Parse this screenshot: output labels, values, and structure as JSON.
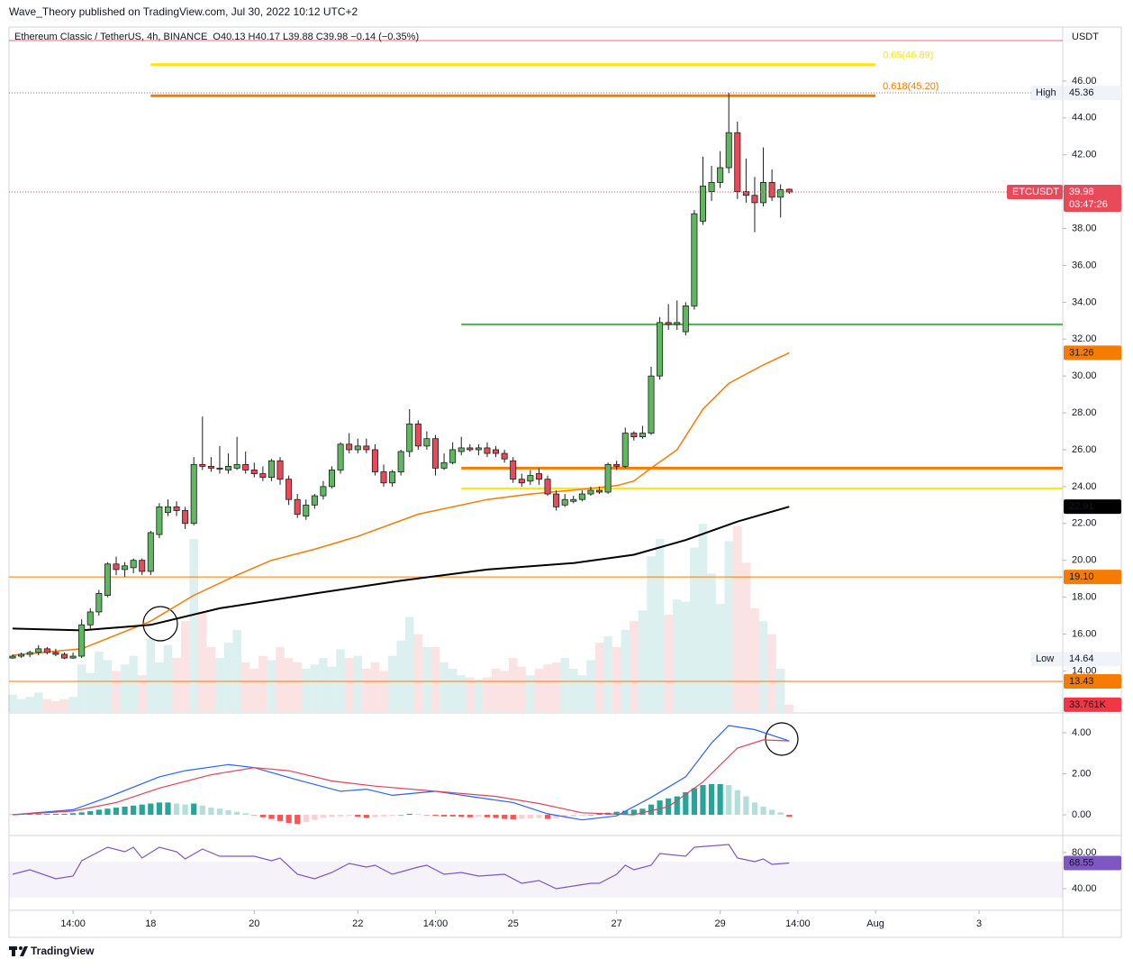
{
  "header": {
    "publisher": "Wave_Theory published on TradingView.com, Jul 30, 2022 10:12 UTC+2",
    "footer": "TradingView"
  },
  "chart_data": [
    {
      "type": "candlestick",
      "title": "Ethereum Classic / TetherUS, 4h, BINANCE",
      "ohlc_legend": "O40.13  H40.17  L39.88  C39.98  −0.14 (−0.35%)",
      "currency": "USDT",
      "ticker": "ETCUSDT",
      "countdown": "03:47:26",
      "up_color": "#5fb760",
      "down_color": "#e84a5a",
      "outline_color": "#1c1c1c",
      "open": [
        14.7,
        14.8,
        14.9,
        15.0,
        15.2,
        15.0,
        14.9,
        14.7,
        14.8,
        16.5,
        17.2,
        18.1,
        19.8,
        19.5,
        19.6,
        20.0,
        19.4,
        21.4,
        22.6,
        22.9,
        22.7,
        22.0,
        25.2,
        25.1,
        25.0,
        24.9,
        25.0,
        25.2,
        24.9,
        24.7,
        24.5,
        25.4,
        24.4,
        23.3,
        22.4,
        23.0,
        23.5,
        24.0,
        24.9,
        26.3,
        26.0,
        26.2,
        26.0,
        24.8,
        24.2,
        24.8,
        25.9,
        27.4,
        26.2,
        26.6,
        25.0,
        25.3,
        25.9,
        26.1,
        26.0,
        26.1,
        26.0,
        25.8,
        25.4,
        24.4,
        24.3,
        24.7,
        24.4,
        23.6,
        23.0,
        23.2,
        23.3,
        23.6,
        23.8,
        23.7,
        25.2,
        25.1,
        26.9,
        26.7,
        26.9,
        30.0,
        32.9,
        32.8,
        32.4,
        33.8,
        38.4,
        40.0,
        40.5,
        41.3,
        43.2,
        40.0,
        39.8,
        39.4,
        40.5,
        39.7,
        40.13
      ],
      "high": [
        14.9,
        15.0,
        15.1,
        15.4,
        15.3,
        15.2,
        15.0,
        15.0,
        16.8,
        17.4,
        18.4,
        19.9,
        20.2,
        19.9,
        20.1,
        20.1,
        21.6,
        23.1,
        23.3,
        23.2,
        22.9,
        25.6,
        27.8,
        25.6,
        26.2,
        25.8,
        26.7,
        25.9,
        25.3,
        25.1,
        25.5,
        25.6,
        24.6,
        23.6,
        23.3,
        23.6,
        24.3,
        25.1,
        26.4,
        26.9,
        26.6,
        26.6,
        26.3,
        25.2,
        24.9,
        26.0,
        28.2,
        27.6,
        27.0,
        26.8,
        25.8,
        26.4,
        26.7,
        26.3,
        26.3,
        26.4,
        26.2,
        26.0,
        25.6,
        24.7,
        24.9,
        25.0,
        24.6,
        23.8,
        23.6,
        23.5,
        23.8,
        24.0,
        24.0,
        25.3,
        25.4,
        27.2,
        27.0,
        27.3,
        30.5,
        33.2,
        33.9,
        34.1,
        34.0,
        39.0,
        41.9,
        41.4,
        42.2,
        45.36,
        43.8,
        41.8,
        40.8,
        42.4,
        41.2,
        40.4,
        40.17
      ],
      "low": [
        14.66,
        14.7,
        14.75,
        14.85,
        14.9,
        14.8,
        14.64,
        14.65,
        14.7,
        16.3,
        17.0,
        18.0,
        19.2,
        19.1,
        19.3,
        19.2,
        19.2,
        21.2,
        22.4,
        22.4,
        21.7,
        21.9,
        24.9,
        24.8,
        24.7,
        24.7,
        24.9,
        24.7,
        24.5,
        24.3,
        24.3,
        24.1,
        23.0,
        22.3,
        22.2,
        22.8,
        23.3,
        23.9,
        24.7,
        25.8,
        25.8,
        25.8,
        24.6,
        24.0,
        24.0,
        24.6,
        25.6,
        26.0,
        26.0,
        24.6,
        24.9,
        25.2,
        25.7,
        25.9,
        25.7,
        25.6,
        25.6,
        25.3,
        24.2,
        24.0,
        24.1,
        24.1,
        23.5,
        22.7,
        22.9,
        23.1,
        23.2,
        23.5,
        23.6,
        23.6,
        24.9,
        25.0,
        26.5,
        26.6,
        26.8,
        29.8,
        32.5,
        32.5,
        32.2,
        33.6,
        38.2,
        39.5,
        40.2,
        41.0,
        39.6,
        39.4,
        37.8,
        39.2,
        39.5,
        38.6,
        39.88
      ],
      "close": [
        14.8,
        14.9,
        15.0,
        15.2,
        15.0,
        14.9,
        14.7,
        14.8,
        16.5,
        17.2,
        18.2,
        19.8,
        19.5,
        19.7,
        20.0,
        19.4,
        21.5,
        22.9,
        22.9,
        22.7,
        22.0,
        25.2,
        25.1,
        25.0,
        25.0,
        25.1,
        25.2,
        24.9,
        24.7,
        24.5,
        25.4,
        24.4,
        23.3,
        22.5,
        23.0,
        23.5,
        24.0,
        24.9,
        26.3,
        26.0,
        26.2,
        26.0,
        24.8,
        24.2,
        24.8,
        25.9,
        27.4,
        26.2,
        26.6,
        25.0,
        25.3,
        26.0,
        26.1,
        26.0,
        26.1,
        25.8,
        25.8,
        25.5,
        24.4,
        24.2,
        24.6,
        24.4,
        23.6,
        22.9,
        23.3,
        23.3,
        23.6,
        23.8,
        23.7,
        25.2,
        25.1,
        26.9,
        26.7,
        26.9,
        30.0,
        32.9,
        32.8,
        32.9,
        33.8,
        38.8,
        40.3,
        40.5,
        41.3,
        43.2,
        40.0,
        39.8,
        39.4,
        40.5,
        39.7,
        40.1,
        39.98
      ],
      "volume": {
        "up_color": "rgba(38,166,154,0.16)",
        "down_color": "rgba(239,83,80,0.16)",
        "label_color": "#f23645",
        "vlim": [
          0,
          1000000
        ],
        "values": [
          80000,
          60000,
          70000,
          90000,
          60000,
          50000,
          60000,
          70000,
          220000,
          180000,
          280000,
          240000,
          190000,
          220000,
          260000,
          170000,
          340000,
          230000,
          310000,
          250000,
          420000,
          800000,
          460000,
          300000,
          250000,
          320000,
          380000,
          230000,
          200000,
          260000,
          240000,
          300000,
          250000,
          230000,
          200000,
          220000,
          250000,
          210000,
          290000,
          250000,
          260000,
          200000,
          230000,
          190000,
          260000,
          330000,
          440000,
          360000,
          300000,
          300000,
          230000,
          200000,
          170000,
          160000,
          150000,
          160000,
          200000,
          190000,
          250000,
          210000,
          170000,
          200000,
          220000,
          230000,
          250000,
          200000,
          170000,
          240000,
          320000,
          350000,
          300000,
          380000,
          420000,
          470000,
          720000,
          800000,
          450000,
          520000,
          510000,
          760000,
          870000,
          640000,
          500000,
          790000,
          860000,
          690000,
          480000,
          420000,
          360000,
          200000,
          33761
        ],
        "value_labels": [
          null,
          null,
          null,
          null,
          null,
          null,
          null,
          null,
          null,
          null,
          null,
          null,
          null,
          null,
          null,
          null,
          null,
          null,
          null,
          null,
          null,
          null,
          null,
          null,
          null,
          null,
          null,
          null,
          null,
          null,
          null,
          null,
          null,
          null,
          null,
          null,
          null,
          null,
          null,
          null,
          null,
          null,
          null,
          null,
          null,
          null,
          null,
          null,
          null,
          null,
          null,
          null,
          null,
          null,
          null,
          null,
          null,
          null,
          null,
          null,
          null,
          null,
          null,
          null,
          null,
          null,
          null,
          null,
          null,
          null,
          null,
          null,
          null,
          null,
          null,
          null,
          null,
          null,
          null,
          null,
          null,
          null,
          null,
          null,
          null,
          null,
          null,
          null,
          null,
          null,
          "33.761K"
        ]
      },
      "series": [
        {
          "color": "#f57c00",
          "line_width": 1.5,
          "x": [
            0,
            8,
            16,
            21,
            26,
            30,
            35,
            40,
            47,
            55,
            60,
            66,
            70,
            72,
            74,
            77,
            80,
            83,
            87,
            90
          ],
          "values": [
            14.85,
            15.2,
            16.7,
            18.1,
            19.2,
            20.0,
            20.6,
            21.3,
            22.5,
            23.3,
            23.6,
            23.85,
            24.05,
            24.3,
            25.0,
            26.0,
            28.2,
            29.6,
            30.6,
            31.26
          ]
        },
        {
          "color": "#000000",
          "line_width": 2,
          "x": [
            0,
            8,
            16,
            24,
            35,
            45,
            55,
            65,
            72,
            78,
            84,
            90
          ],
          "values": [
            16.3,
            16.2,
            16.5,
            17.4,
            18.2,
            18.9,
            19.5,
            19.85,
            20.3,
            21.1,
            22.1,
            22.91
          ]
        }
      ],
      "levels": [
        {
          "label": "0.65(46.89)",
          "value": 46.89,
          "color": "#ffe600",
          "start": 16,
          "end": 100,
          "line_width": 3
        },
        {
          "label": "0.618(45.20)",
          "value": 45.2,
          "color": "#f57c00",
          "start": 16,
          "end": 100,
          "line_width": 3
        },
        {
          "value": 32.8,
          "color": "#4caf50",
          "start": 52,
          "line_width": 2
        },
        {
          "value": 25.0,
          "color": "#f57c00",
          "start": 52,
          "line_width": 3
        },
        {
          "value": 23.9,
          "color": "#ffe600",
          "start": 52,
          "line_width": 2
        },
        {
          "value": 19.1,
          "label": "19.10",
          "color": "#f57c00",
          "line_width": 1
        },
        {
          "value": 13.43,
          "color": "#f57c00",
          "line_width": 1
        }
      ],
      "extremes": {
        "high_text": "High",
        "high": 45.36,
        "low_text": "Low",
        "low": 14.64
      },
      "ylim": [
        11.77,
        48.93
      ],
      "yticks": [
        {
          "value": 14,
          "label": "14.00"
        },
        {
          "value": 16,
          "label": "16.00"
        },
        {
          "value": 18,
          "label": "18.00"
        },
        {
          "value": 20,
          "label": "20.00"
        },
        {
          "value": 22,
          "label": "22.00"
        },
        {
          "value": 24,
          "label": "24.00"
        },
        {
          "value": 26,
          "label": "26.00"
        },
        {
          "value": 28,
          "label": "28.00"
        },
        {
          "value": 30,
          "label": "30.00"
        },
        {
          "value": 32,
          "label": "32.00"
        },
        {
          "value": 34,
          "label": "34.00"
        },
        {
          "value": 36,
          "label": "36.00"
        },
        {
          "value": 38,
          "label": "38.00"
        },
        {
          "value": 40,
          "label": "40.00"
        },
        {
          "value": 42,
          "label": "42.00"
        },
        {
          "value": 44,
          "label": "44.00"
        },
        {
          "value": 46,
          "label": "46.00"
        }
      ],
      "xlim": [
        -0.42,
        121.7
      ],
      "xticks": [
        {
          "value": 7,
          "label": "14:00"
        },
        {
          "value": 16,
          "label": "18"
        },
        {
          "value": 28,
          "label": "20"
        },
        {
          "value": 40,
          "label": "22"
        },
        {
          "value": 49,
          "label": "14:00"
        },
        {
          "value": 58,
          "label": "25"
        },
        {
          "value": 70,
          "label": "27"
        },
        {
          "value": 82,
          "label": "29"
        },
        {
          "value": 91,
          "label": "14:00"
        },
        {
          "value": 100,
          "label": "Aug"
        },
        {
          "value": 112,
          "label": "3"
        }
      ]
    },
    {
      "type": "macd",
      "series": [
        {
          "color": "#2962ff",
          "x": [
            0,
            7,
            11,
            17,
            20,
            25,
            28,
            33,
            38,
            41,
            44,
            49,
            53,
            58,
            62,
            66,
            70,
            74,
            78,
            81,
            83,
            86,
            90
          ],
          "values": [
            0,
            0.25,
            0.85,
            1.85,
            2.15,
            2.45,
            2.3,
            1.7,
            1.15,
            1.25,
            0.95,
            1.15,
            0.9,
            0.6,
            0.05,
            -0.25,
            -0.05,
            0.85,
            1.85,
            3.5,
            4.35,
            4.15,
            3.6
          ]
        },
        {
          "color": "#e0435a",
          "x": [
            0,
            7,
            12,
            17,
            23,
            28,
            32,
            37,
            42,
            49,
            56,
            61,
            66,
            72,
            76,
            80,
            84,
            87,
            90
          ],
          "values": [
            0,
            0.18,
            0.6,
            1.3,
            1.95,
            2.3,
            2.15,
            1.65,
            1.4,
            1.15,
            0.9,
            0.55,
            0.1,
            0,
            0.4,
            1.6,
            3.25,
            3.65,
            3.6
          ]
        }
      ],
      "histogram": {
        "colors": [
          "#26a69a",
          "#b2dfdb",
          "#ff5252",
          "#ffcdd2"
        ],
        "values": [
          0.02,
          0.03,
          0.03,
          0.04,
          0.04,
          0.05,
          0.05,
          0.08,
          0.12,
          0.18,
          0.25,
          0.3,
          0.35,
          0.4,
          0.45,
          0.5,
          0.55,
          0.6,
          0.6,
          0.55,
          0.5,
          0.55,
          0.45,
          0.35,
          0.3,
          0.22,
          0.15,
          0.08,
          -0.02,
          -0.12,
          -0.2,
          -0.3,
          -0.4,
          -0.45,
          -0.35,
          -0.25,
          -0.15,
          -0.1,
          -0.08,
          -0.05,
          -0.1,
          -0.15,
          -0.12,
          -0.08,
          -0.05,
          0.0,
          0.05,
          0.03,
          -0.02,
          -0.05,
          -0.08,
          -0.08,
          -0.1,
          -0.12,
          -0.1,
          -0.12,
          -0.15,
          -0.2,
          -0.22,
          -0.2,
          -0.18,
          -0.15,
          -0.2,
          -0.18,
          -0.12,
          -0.08,
          -0.05,
          0.0,
          0.05,
          0.1,
          0.15,
          0.2,
          0.25,
          0.3,
          0.5,
          0.7,
          0.8,
          0.9,
          1.1,
          1.3,
          1.45,
          1.5,
          1.5,
          1.45,
          1.2,
          0.9,
          0.6,
          0.4,
          0.25,
          0.12,
          -0.1
        ]
      },
      "ylim": [
        -0.92,
        4.92
      ],
      "yticks": [
        {
          "value": 0,
          "label": "0.00"
        },
        {
          "value": 2,
          "label": "2.00"
        },
        {
          "value": 4,
          "label": "4.00"
        }
      ]
    },
    {
      "type": "line",
      "series": [
        {
          "color": "#7e57c2",
          "x": [
            0,
            2,
            5,
            7,
            8,
            10,
            11,
            13,
            14,
            15,
            17,
            19,
            20,
            22,
            24,
            26,
            28,
            30,
            31,
            33,
            35,
            37,
            39,
            41,
            42,
            44,
            47,
            48,
            50,
            52,
            54,
            57,
            59,
            61,
            63,
            65,
            67,
            68,
            70,
            71,
            72,
            74,
            75,
            78,
            79,
            83,
            84,
            86,
            87,
            88,
            90
          ],
          "values": [
            56,
            61,
            51,
            54,
            71,
            81,
            86,
            81,
            86,
            74,
            86,
            81,
            73,
            84,
            76,
            76,
            76,
            71,
            74,
            56,
            51,
            58,
            68,
            64,
            66,
            56,
            64,
            66,
            56,
            58,
            54,
            56,
            46,
            49,
            40,
            43,
            46,
            46,
            56,
            66,
            61,
            66,
            79,
            76,
            86,
            89,
            74,
            70,
            73,
            67,
            68.55
          ]
        }
      ],
      "band": [
        30,
        70
      ],
      "band_color": "rgba(126,87,194,0.08)",
      "ylim": [
        16,
        98
      ],
      "yticks": [
        {
          "value": 40,
          "label": "40.00"
        },
        {
          "value": 80,
          "label": "80.00"
        }
      ]
    }
  ]
}
